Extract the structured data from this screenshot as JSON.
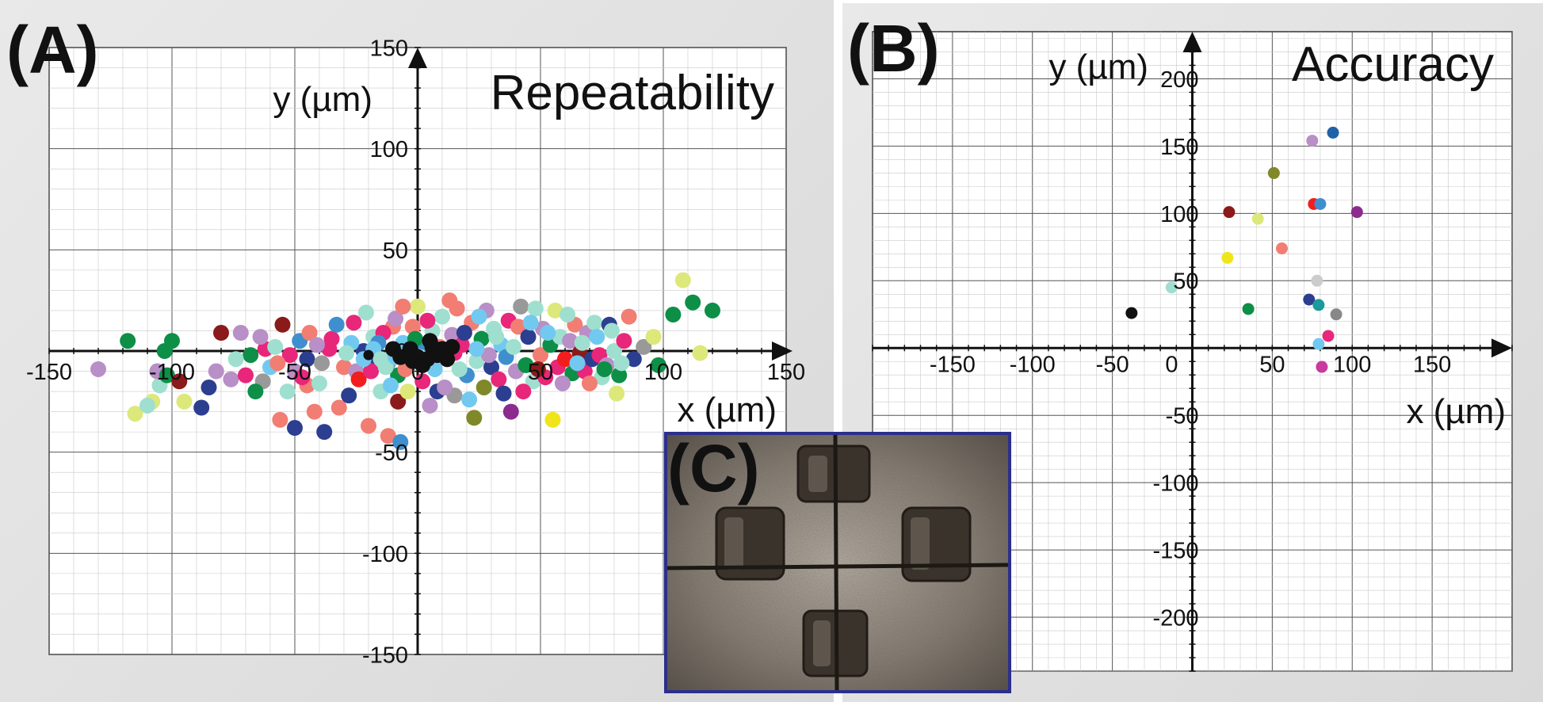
{
  "figure_labels": {
    "a": "(A)",
    "b": "(B)",
    "c": "(C)"
  },
  "chart_data": [
    {
      "type": "scatter",
      "panel": "(A)",
      "title": "Repeatability",
      "xlabel": "x (µm)",
      "ylabel": "y (µm)",
      "xlim": [
        -150,
        150
      ],
      "ylim": [
        -150,
        150
      ],
      "xticks": [
        "-150",
        "-100",
        "-50",
        "0",
        "50",
        "100",
        "150"
      ],
      "yticks": [
        "-150",
        "-100",
        "-50",
        "0",
        "50",
        "100",
        "150"
      ],
      "grid": true,
      "note": "Scattered repeatability points clustered along y≈0 from x≈-110 to x≈120",
      "points": [
        {
          "x": -130,
          "y": -9,
          "c": "#b88fc6"
        },
        {
          "x": -118,
          "y": 5,
          "c": "#0d8f47"
        },
        {
          "x": -115,
          "y": -31,
          "c": "#dde87a"
        },
        {
          "x": -108,
          "y": -25,
          "c": "#dde87a"
        },
        {
          "x": -105,
          "y": -17,
          "c": "#9fdfcf"
        },
        {
          "x": -106,
          "y": -10,
          "c": "#b88fc6"
        },
        {
          "x": -102,
          "y": -12,
          "c": "#0d8f47"
        },
        {
          "x": -100,
          "y": 5,
          "c": "#0d8f47"
        },
        {
          "x": -103,
          "y": 0,
          "c": "#0d8f47"
        },
        {
          "x": -110,
          "y": -27,
          "c": "#9fdfcf"
        },
        {
          "x": -95,
          "y": -25,
          "c": "#dde87a"
        },
        {
          "x": -97,
          "y": -15,
          "c": "#8b1a1a"
        },
        {
          "x": -88,
          "y": -28,
          "c": "#2c3e8f"
        },
        {
          "x": -85,
          "y": -18,
          "c": "#2c3e8f"
        },
        {
          "x": -82,
          "y": -10,
          "c": "#b88fc6"
        },
        {
          "x": -76,
          "y": -14,
          "c": "#b88fc6"
        },
        {
          "x": -80,
          "y": 9,
          "c": "#8b1a1a"
        },
        {
          "x": -72,
          "y": 9,
          "c": "#b88fc6"
        },
        {
          "x": -68,
          "y": -2,
          "c": "#0d8f47"
        },
        {
          "x": -63,
          "y": -15,
          "c": "#999999"
        },
        {
          "x": -62,
          "y": 1,
          "c": "#e8267a"
        },
        {
          "x": -58,
          "y": 2,
          "c": "#9fdfcf"
        },
        {
          "x": -55,
          "y": 13,
          "c": "#8b1a1a"
        },
        {
          "x": -56,
          "y": -34,
          "c": "#f27d73"
        },
        {
          "x": -50,
          "y": -38,
          "c": "#2c3e8f"
        },
        {
          "x": -53,
          "y": -20,
          "c": "#9fdfcf"
        },
        {
          "x": -50,
          "y": -10,
          "c": "#b88fc6"
        },
        {
          "x": -48,
          "y": 5,
          "c": "#3f8fce"
        },
        {
          "x": -45,
          "y": -4,
          "c": "#2c3e8f"
        },
        {
          "x": -42,
          "y": -30,
          "c": "#f27d73"
        },
        {
          "x": -45,
          "y": -17,
          "c": "#f27d73"
        },
        {
          "x": -38,
          "y": -40,
          "c": "#2c3e8f"
        },
        {
          "x": -40,
          "y": -16,
          "c": "#9fdfcf"
        },
        {
          "x": -35,
          "y": 6,
          "c": "#e8267a"
        },
        {
          "x": -32,
          "y": -28,
          "c": "#f27d73"
        },
        {
          "x": -30,
          "y": -8,
          "c": "#f27d73"
        },
        {
          "x": -28,
          "y": -22,
          "c": "#2c3e8f"
        },
        {
          "x": -25,
          "y": -10,
          "c": "#b88fc6"
        },
        {
          "x": -22,
          "y": 0,
          "c": "#2c3e8f"
        },
        {
          "x": -20,
          "y": -37,
          "c": "#f27d73"
        },
        {
          "x": -18,
          "y": 7,
          "c": "#9fdfcf"
        },
        {
          "x": -15,
          "y": -20,
          "c": "#9fdfcf"
        },
        {
          "x": -12,
          "y": -6,
          "c": "#999999"
        },
        {
          "x": -10,
          "y": 12,
          "c": "#f27d73"
        },
        {
          "x": -8,
          "y": -25,
          "c": "#8b1a1a"
        },
        {
          "x": -8,
          "y": -12,
          "c": "#0d8f47"
        },
        {
          "x": -6,
          "y": 4,
          "c": "#72c9f0"
        },
        {
          "x": -4,
          "y": -20,
          "c": "#dde87a"
        },
        {
          "x": -3,
          "y": -6,
          "c": "#9fdfcf"
        },
        {
          "x": -2,
          "y": 12,
          "c": "#f27d73"
        },
        {
          "x": 0,
          "y": 22,
          "c": "#dde87a"
        },
        {
          "x": 2,
          "y": -15,
          "c": "#e8267a"
        },
        {
          "x": 3,
          "y": 3,
          "c": "#3f8fce"
        },
        {
          "x": 5,
          "y": -27,
          "c": "#b88fc6"
        },
        {
          "x": 6,
          "y": 10,
          "c": "#9fdfcf"
        },
        {
          "x": 8,
          "y": -20,
          "c": "#2c3e8f"
        },
        {
          "x": 10,
          "y": 17,
          "c": "#9fdfcf"
        },
        {
          "x": -12,
          "y": -42,
          "c": "#f27d73"
        },
        {
          "x": -7,
          "y": -45,
          "c": "#3f8fce"
        },
        {
          "x": -36,
          "y": 1,
          "c": "#e8267a"
        },
        {
          "x": 12,
          "y": -4,
          "c": "#f27d73"
        },
        {
          "x": 14,
          "y": 8,
          "c": "#b88fc6"
        },
        {
          "x": 15,
          "y": -22,
          "c": "#999999"
        },
        {
          "x": 16,
          "y": 21,
          "c": "#f27d73"
        },
        {
          "x": 18,
          "y": 3,
          "c": "#e8267a"
        },
        {
          "x": 20,
          "y": -12,
          "c": "#3f8fce"
        },
        {
          "x": 22,
          "y": 14,
          "c": "#f27d73"
        },
        {
          "x": 23,
          "y": -33,
          "c": "#808829"
        },
        {
          "x": 24,
          "y": -5,
          "c": "#9fdfcf"
        },
        {
          "x": 26,
          "y": 6,
          "c": "#0d8f47"
        },
        {
          "x": 27,
          "y": -18,
          "c": "#808829"
        },
        {
          "x": 28,
          "y": 20,
          "c": "#b88fc6"
        },
        {
          "x": 30,
          "y": -8,
          "c": "#2c3e8f"
        },
        {
          "x": 31,
          "y": 11,
          "c": "#9fdfcf"
        },
        {
          "x": 33,
          "y": -14,
          "c": "#e8267a"
        },
        {
          "x": 34,
          "y": 3,
          "c": "#72c9f0"
        },
        {
          "x": 36,
          "y": -3,
          "c": "#3f8fce"
        },
        {
          "x": 37,
          "y": 15,
          "c": "#e8267a"
        },
        {
          "x": 38,
          "y": -30,
          "c": "#8b2b8f"
        },
        {
          "x": 40,
          "y": -10,
          "c": "#b88fc6"
        },
        {
          "x": 41,
          "y": 12,
          "c": "#f27d73"
        },
        {
          "x": 42,
          "y": 22,
          "c": "#999999"
        },
        {
          "x": 44,
          "y": -7,
          "c": "#0d8f47"
        },
        {
          "x": 45,
          "y": 7,
          "c": "#2c3e8f"
        },
        {
          "x": 47,
          "y": -15,
          "c": "#9fdfcf"
        },
        {
          "x": 48,
          "y": 21,
          "c": "#9fdfcf"
        },
        {
          "x": 50,
          "y": -2,
          "c": "#f27d73"
        },
        {
          "x": 51,
          "y": 11,
          "c": "#b88fc6"
        },
        {
          "x": 52,
          "y": -13,
          "c": "#e8267a"
        },
        {
          "x": 54,
          "y": 3,
          "c": "#0d8f47"
        },
        {
          "x": 55,
          "y": -34,
          "c": "#f0e51a"
        },
        {
          "x": 56,
          "y": 20,
          "c": "#dde87a"
        },
        {
          "x": 57,
          "y": -8,
          "c": "#e8267a"
        },
        {
          "x": 58,
          "y": 7,
          "c": "#9fdfcf"
        },
        {
          "x": 60,
          "y": -4,
          "c": "#f21e1e"
        },
        {
          "x": 62,
          "y": 5,
          "c": "#b88fc6"
        },
        {
          "x": 63,
          "y": -11,
          "c": "#0d8f47"
        },
        {
          "x": 64,
          "y": 13,
          "c": "#f27d73"
        },
        {
          "x": 66,
          "y": -1,
          "c": "#8b1a1a"
        },
        {
          "x": 68,
          "y": -10,
          "c": "#e8267a"
        },
        {
          "x": 69,
          "y": 9,
          "c": "#b88fc6"
        },
        {
          "x": 71,
          "y": -4,
          "c": "#2c3e8f"
        },
        {
          "x": 72,
          "y": 14,
          "c": "#9fdfcf"
        },
        {
          "x": 74,
          "y": -2,
          "c": "#e8267a"
        },
        {
          "x": 75,
          "y": -13,
          "c": "#9fdfcf"
        },
        {
          "x": 77,
          "y": -7,
          "c": "#b88fc6"
        },
        {
          "x": 78,
          "y": 13,
          "c": "#2c3e8f"
        },
        {
          "x": 80,
          "y": 0,
          "c": "#9fdfcf"
        },
        {
          "x": 81,
          "y": -21,
          "c": "#dde87a"
        },
        {
          "x": 82,
          "y": -12,
          "c": "#0d8f47"
        },
        {
          "x": 84,
          "y": 5,
          "c": "#e8267a"
        },
        {
          "x": 86,
          "y": 17,
          "c": "#f27d73"
        },
        {
          "x": 88,
          "y": -4,
          "c": "#2c3e8f"
        },
        {
          "x": 92,
          "y": 2,
          "c": "#999999"
        },
        {
          "x": 96,
          "y": 7,
          "c": "#dde87a"
        },
        {
          "x": 98,
          "y": -7,
          "c": "#0d8f47"
        },
        {
          "x": 104,
          "y": 18,
          "c": "#0d8f47"
        },
        {
          "x": 108,
          "y": 35,
          "c": "#dde87a"
        },
        {
          "x": 112,
          "y": 24,
          "c": "#0d8f47"
        },
        {
          "x": 115,
          "y": -1,
          "c": "#dde87a"
        },
        {
          "x": 120,
          "y": 20,
          "c": "#0d8f47"
        },
        {
          "x": -70,
          "y": -12,
          "c": "#e8267a"
        },
        {
          "x": -66,
          "y": -20,
          "c": "#0d8f47"
        },
        {
          "x": -60,
          "y": -8,
          "c": "#72c9f0"
        },
        {
          "x": -52,
          "y": -2,
          "c": "#e8267a"
        },
        {
          "x": -44,
          "y": 9,
          "c": "#f27d73"
        },
        {
          "x": -39,
          "y": -6,
          "c": "#999999"
        },
        {
          "x": -33,
          "y": 13,
          "c": "#3f8fce"
        },
        {
          "x": -27,
          "y": 4,
          "c": "#72c9f0"
        },
        {
          "x": -24,
          "y": -14,
          "c": "#f21e1e"
        },
        {
          "x": -21,
          "y": 19,
          "c": "#9fdfcf"
        },
        {
          "x": -17,
          "y": -3,
          "c": "#2c3e8f"
        },
        {
          "x": -14,
          "y": 9,
          "c": "#e8267a"
        },
        {
          "x": -11,
          "y": -17,
          "c": "#72c9f0"
        },
        {
          "x": -9,
          "y": 16,
          "c": "#b88fc6"
        },
        {
          "x": -5,
          "y": -9,
          "c": "#f27d73"
        },
        {
          "x": -1,
          "y": 6,
          "c": "#0d8f47"
        },
        {
          "x": 1,
          "y": -3,
          "c": "#9fdfcf"
        },
        {
          "x": 4,
          "y": 15,
          "c": "#e8267a"
        },
        {
          "x": 7,
          "y": -9,
          "c": "#72c9f0"
        },
        {
          "x": 9,
          "y": 2,
          "c": "#f27d73"
        },
        {
          "x": 11,
          "y": -18,
          "c": "#b88fc6"
        },
        {
          "x": 13,
          "y": 25,
          "c": "#f27d73"
        },
        {
          "x": 17,
          "y": -9,
          "c": "#9fdfcf"
        },
        {
          "x": 19,
          "y": 9,
          "c": "#2c3e8f"
        },
        {
          "x": 21,
          "y": -24,
          "c": "#72c9f0"
        },
        {
          "x": 25,
          "y": 17,
          "c": "#72c9f0"
        },
        {
          "x": 29,
          "y": -2,
          "c": "#b88fc6"
        },
        {
          "x": 32,
          "y": 7,
          "c": "#9fdfcf"
        },
        {
          "x": 35,
          "y": -21,
          "c": "#2c3e8f"
        },
        {
          "x": 39,
          "y": 2,
          "c": "#9fdfcf"
        },
        {
          "x": 43,
          "y": -20,
          "c": "#e8267a"
        },
        {
          "x": 46,
          "y": 14,
          "c": "#72c9f0"
        },
        {
          "x": 49,
          "y": -9,
          "c": "#8b1a1a"
        },
        {
          "x": 53,
          "y": 9,
          "c": "#72c9f0"
        },
        {
          "x": 59,
          "y": -16,
          "c": "#b88fc6"
        },
        {
          "x": 61,
          "y": 18,
          "c": "#9fdfcf"
        },
        {
          "x": 65,
          "y": -6,
          "c": "#72c9f0"
        },
        {
          "x": 67,
          "y": 4,
          "c": "#9fdfcf"
        },
        {
          "x": 70,
          "y": -16,
          "c": "#f27d73"
        },
        {
          "x": 73,
          "y": 7,
          "c": "#72c9f0"
        },
        {
          "x": 76,
          "y": -9,
          "c": "#0d8f47"
        },
        {
          "x": 79,
          "y": 10,
          "c": "#9fdfcf"
        },
        {
          "x": 83,
          "y": -6,
          "c": "#9fdfcf"
        },
        {
          "x": -74,
          "y": -4,
          "c": "#9fdfcf"
        },
        {
          "x": -64,
          "y": 7,
          "c": "#b88fc6"
        },
        {
          "x": -57,
          "y": -6,
          "c": "#f27d73"
        },
        {
          "x": -47,
          "y": -13,
          "c": "#e8267a"
        },
        {
          "x": -41,
          "y": 3,
          "c": "#b88fc6"
        },
        {
          "x": -29,
          "y": -1,
          "c": "#9fdfcf"
        },
        {
          "x": -26,
          "y": 14,
          "c": "#e8267a"
        },
        {
          "x": -19,
          "y": -10,
          "c": "#e8267a"
        },
        {
          "x": -16,
          "y": 4,
          "c": "#3f8fce"
        },
        {
          "x": -13,
          "y": -8,
          "c": "#9fdfcf"
        },
        {
          "x": -6,
          "y": 22,
          "c": "#f27d73"
        },
        {
          "x": -18,
          "y": 1,
          "c": "#72c9f0"
        },
        {
          "x": -15,
          "y": -4,
          "c": "#9fdfcf"
        },
        {
          "x": -4,
          "y": -1,
          "c": "#72c9f0"
        },
        {
          "x": 6,
          "y": -1,
          "c": "#3f8fce"
        },
        {
          "x": 15,
          "y": -1,
          "c": "#e8267a"
        },
        {
          "x": 24,
          "y": 1,
          "c": "#72c9f0"
        },
        {
          "x": -22,
          "y": -4,
          "c": "#72c9f0"
        },
        {
          "x": -9,
          "y": -3,
          "c": "#72c9f0"
        },
        {
          "x": -20,
          "y": -2,
          "c": "#111111",
          "small": true
        },
        {
          "x": -10,
          "y": 1,
          "c": "#111111"
        },
        {
          "x": -7,
          "y": -3,
          "c": "#111111"
        },
        {
          "x": -3,
          "y": 1,
          "c": "#111111"
        },
        {
          "x": -2,
          "y": -5,
          "c": "#111111"
        },
        {
          "x": 0,
          "y": -3,
          "c": "#111111"
        },
        {
          "x": 2,
          "y": -7,
          "c": "#111111"
        },
        {
          "x": 5,
          "y": 5,
          "c": "#111111"
        },
        {
          "x": 6,
          "y": 2,
          "c": "#111111"
        },
        {
          "x": 8,
          "y": -2,
          "c": "#111111"
        },
        {
          "x": 10,
          "y": 1,
          "c": "#111111"
        },
        {
          "x": 12,
          "y": -4,
          "c": "#111111"
        },
        {
          "x": 14,
          "y": 2,
          "c": "#111111"
        },
        {
          "x": 4,
          "y": -4,
          "c": "#111111"
        }
      ]
    },
    {
      "type": "scatter",
      "panel": "(B)",
      "title": "Accuracy",
      "xlabel": "x (µm)",
      "ylabel": "y (µm)",
      "xlim": [
        -200,
        200
      ],
      "ylim": [
        -240,
        235
      ],
      "xticks": [
        "-150",
        "-100",
        "-50",
        "0",
        "50",
        "100",
        "150"
      ],
      "yticks": [
        "200",
        "150",
        "100",
        "50",
        "-50",
        "-100",
        "-150",
        "-200"
      ],
      "grid": true,
      "points": [
        {
          "x": -38,
          "y": 26,
          "c": "#111111"
        },
        {
          "x": -13,
          "y": 45,
          "c": "#9fdfcf"
        },
        {
          "x": 22,
          "y": 67,
          "c": "#f0e51a"
        },
        {
          "x": 35,
          "y": 29,
          "c": "#0d8f47"
        },
        {
          "x": 23,
          "y": 101,
          "c": "#8b1a1a"
        },
        {
          "x": 41,
          "y": 96,
          "c": "#dde87a"
        },
        {
          "x": 51,
          "y": 130,
          "c": "#808829"
        },
        {
          "x": 56,
          "y": 74,
          "c": "#f27d73"
        },
        {
          "x": 73,
          "y": 36,
          "c": "#2c3e8f"
        },
        {
          "x": 75,
          "y": 154,
          "c": "#b88fc6"
        },
        {
          "x": 76,
          "y": 107,
          "c": "#f21e1e"
        },
        {
          "x": 78,
          "y": 50,
          "c": "#cccccc"
        },
        {
          "x": 79,
          "y": 32,
          "c": "#1a9a9a"
        },
        {
          "x": 79,
          "y": 3,
          "c": "#72c9f0"
        },
        {
          "x": 80,
          "y": 107,
          "c": "#3f8fce"
        },
        {
          "x": 81,
          "y": -14,
          "c": "#c83a9e"
        },
        {
          "x": 85,
          "y": 9,
          "c": "#e8267a"
        },
        {
          "x": 88,
          "y": 160,
          "c": "#1f62a8"
        },
        {
          "x": 90,
          "y": 25,
          "c": "#888888"
        },
        {
          "x": 103,
          "y": 101,
          "c": "#8b2b8f"
        }
      ]
    }
  ]
}
